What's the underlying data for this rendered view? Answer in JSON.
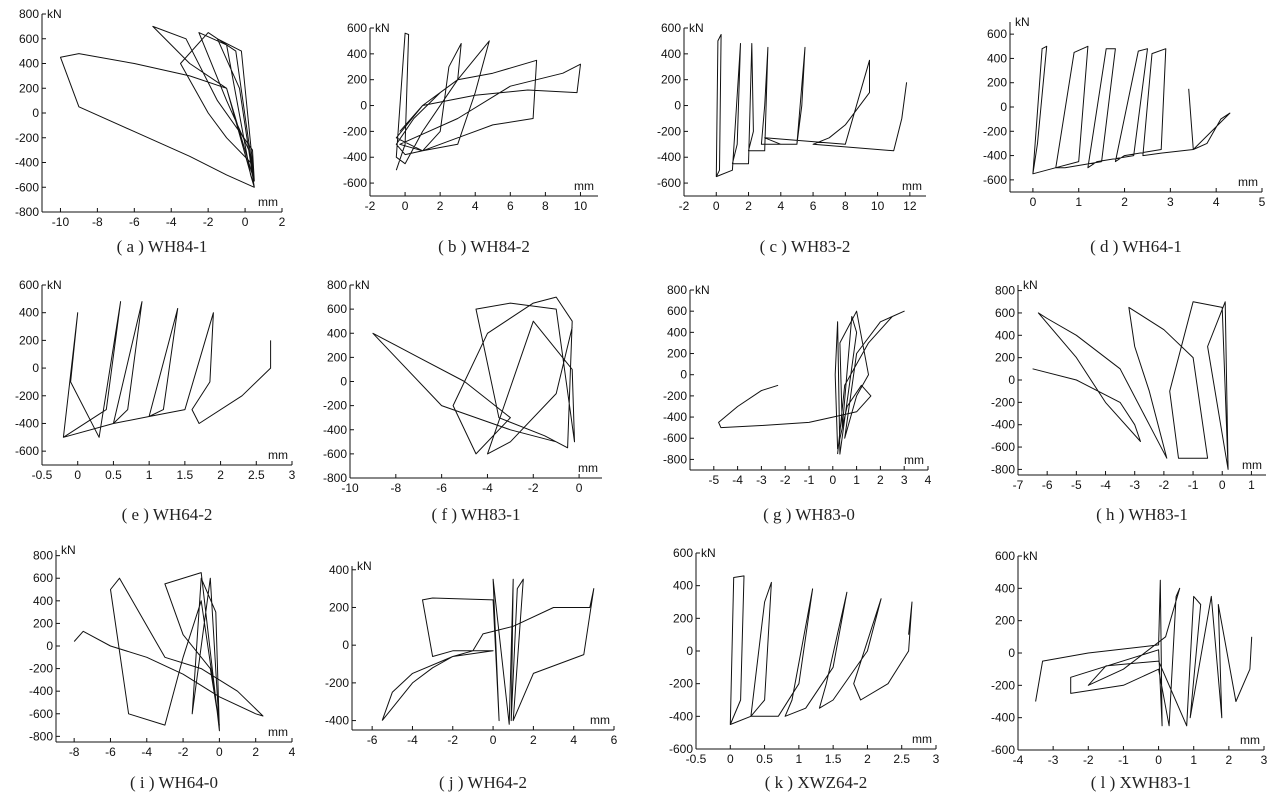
{
  "chart_data": [
    {
      "type": "line",
      "caption": "( a ) WH84-1",
      "xlabel": "mm",
      "ylabel": "kN",
      "xlim": [
        -11,
        2
      ],
      "ylim": [
        -800,
        800
      ],
      "xticks": [
        -10,
        -8,
        -6,
        -4,
        -2,
        0,
        2
      ],
      "yticks": [
        -800,
        -600,
        -400,
        -200,
        0,
        200,
        400,
        600,
        800
      ],
      "series": [
        {
          "x": [
            0.5,
            -1,
            -3,
            -6,
            -9,
            -10,
            -9,
            -6,
            -3,
            -1,
            0.5,
            0.3,
            -1,
            -2,
            -3.5,
            -2,
            -0.5,
            0.5,
            0.4,
            -1.5,
            -3.2,
            -5,
            -3,
            -1,
            0.5,
            0.2,
            -1,
            -2.5,
            -1,
            0.3,
            0.5,
            -0.3,
            -1.5,
            -0.2,
            0.5
          ],
          "y": [
            -600,
            -500,
            -350,
            -150,
            50,
            450,
            480,
            400,
            300,
            200,
            -600,
            -400,
            -200,
            0,
            400,
            650,
            500,
            -550,
            -300,
            100,
            600,
            700,
            400,
            200,
            -550,
            -300,
            100,
            650,
            550,
            -500,
            -600,
            200,
            600,
            500,
            -550
          ]
        }
      ]
    },
    {
      "type": "line",
      "caption": "( b ) WH84-2",
      "xlabel": "mm",
      "ylabel": "kN",
      "xlim": [
        -2,
        11
      ],
      "ylim": [
        -700,
        600
      ],
      "xticks": [
        -2,
        0,
        2,
        4,
        6,
        8,
        10
      ],
      "yticks": [
        -600,
        -400,
        -200,
        0,
        200,
        400,
        600
      ],
      "series": [
        {
          "x": [
            -0.5,
            0,
            0.2,
            0,
            -0.5,
            0,
            1,
            3,
            3.2,
            2.5,
            2,
            1,
            0,
            -0.5,
            0.5,
            2,
            3,
            4.5,
            4.8,
            4,
            3,
            1,
            -0.5,
            1,
            3,
            5,
            7.5,
            7.3,
            5,
            3,
            1,
            -0.3,
            3,
            6,
            9,
            10,
            9.8,
            7,
            4,
            1,
            -0.3
          ],
          "y": [
            -500,
            -300,
            550,
            560,
            -400,
            -450,
            -200,
            200,
            480,
            300,
            -200,
            -350,
            -380,
            -300,
            -100,
            100,
            200,
            450,
            500,
            100,
            -300,
            -350,
            -250,
            0,
            200,
            250,
            350,
            -100,
            -150,
            -250,
            -350,
            -300,
            -100,
            150,
            250,
            320,
            100,
            120,
            80,
            0,
            -200
          ]
        }
      ]
    },
    {
      "type": "line",
      "caption": "( c ) WH83-2",
      "xlabel": "mm",
      "ylabel": "kN",
      "xlim": [
        -2,
        13
      ],
      "ylim": [
        -700,
        600
      ],
      "xticks": [
        -2,
        0,
        2,
        4,
        6,
        8,
        10,
        12
      ],
      "yticks": [
        -600,
        -400,
        -200,
        0,
        200,
        400,
        600
      ],
      "series": [
        {
          "x": [
            0,
            0.1,
            0.3,
            0.2,
            0,
            1,
            1.5,
            1.3,
            1,
            2,
            2.2,
            2.3,
            2,
            3,
            3.2,
            3,
            2.8,
            5,
            5.5,
            5.3,
            5,
            4,
            3,
            8,
            9.5,
            9.5,
            8,
            7,
            6,
            11,
            11.5,
            11.8
          ],
          "y": [
            -550,
            500,
            550,
            -500,
            -550,
            -500,
            480,
            -300,
            -450,
            -450,
            480,
            -200,
            -350,
            -350,
            450,
            0,
            -300,
            -300,
            450,
            0,
            -300,
            -300,
            -250,
            -300,
            350,
            100,
            -150,
            -250,
            -300,
            -350,
            -100,
            180
          ]
        }
      ]
    },
    {
      "type": "line",
      "caption": "( d ) WH64-1",
      "xlabel": "mm",
      "ylabel": "kN",
      "xlim": [
        -0.5,
        5
      ],
      "ylim": [
        -700,
        700
      ],
      "xticks": [
        0,
        1,
        2,
        3,
        4,
        5
      ],
      "yticks": [
        -600,
        -400,
        -200,
        0,
        200,
        400,
        600
      ],
      "series": [
        {
          "x": [
            0,
            0.1,
            0.3,
            0.2,
            0,
            0.5,
            1,
            1.2,
            0.9,
            0.5,
            0.7,
            1.5,
            1.8,
            1.6,
            1.2,
            1.4,
            2.2,
            2.5,
            2.3,
            1.8,
            2,
            2.8,
            2.9,
            2.6,
            2.4,
            2.8,
            3.5,
            4.3,
            4.1,
            3.8,
            3.5,
            3.4
          ],
          "y": [
            -550,
            -300,
            500,
            480,
            -550,
            -500,
            -450,
            500,
            450,
            -500,
            -500,
            -450,
            480,
            480,
            -500,
            -450,
            -400,
            480,
            460,
            -450,
            -400,
            -350,
            480,
            440,
            -400,
            -380,
            -350,
            -50,
            -100,
            -300,
            -350,
            150
          ]
        }
      ]
    },
    {
      "type": "line",
      "caption": "( e ) WH64-2",
      "xlabel": "mm",
      "ylabel": "kN",
      "xlim": [
        -0.5,
        3
      ],
      "ylim": [
        -700,
        600
      ],
      "xticks": [
        -0.5,
        0,
        0.5,
        1,
        1.5,
        2,
        2.5,
        3
      ],
      "yticks": [
        -600,
        -400,
        -200,
        0,
        200,
        400,
        600
      ],
      "series": [
        {
          "x": [
            -0.2,
            0,
            -0.1,
            0.3,
            0.6,
            0.4,
            -0.2,
            0.5,
            0.9,
            0.7,
            0.5,
            1.0,
            1.4,
            1.2,
            1.0,
            1.5,
            1.9,
            1.85,
            1.6,
            1.7,
            2.3,
            2.7,
            2.7
          ],
          "y": [
            -500,
            400,
            -100,
            -500,
            480,
            -300,
            -500,
            -400,
            480,
            -300,
            -400,
            -350,
            430,
            -300,
            -350,
            -300,
            400,
            -100,
            -300,
            -400,
            -200,
            0,
            200
          ]
        }
      ]
    },
    {
      "type": "line",
      "caption": "( f ) WH83-1",
      "xlabel": "mm",
      "ylabel": "kN",
      "xlim": [
        -10,
        1
      ],
      "ylim": [
        -800,
        800
      ],
      "xticks": [
        -10,
        -8,
        -6,
        -4,
        -2,
        0
      ],
      "yticks": [
        -800,
        -600,
        -400,
        -200,
        0,
        200,
        400,
        600,
        800
      ],
      "series": [
        {
          "x": [
            -0.5,
            -1,
            -3,
            -6,
            -9,
            -8,
            -7,
            -5,
            -4,
            -3,
            -4.5,
            -5.5,
            -4,
            -2,
            -1,
            -0.3,
            -0.5,
            -1.5,
            -3.5,
            -4.5,
            -3,
            -1,
            -0.2,
            -0.3,
            -2,
            -4,
            -3,
            -1,
            -0.3
          ],
          "y": [
            -550,
            -500,
            -400,
            -200,
            400,
            300,
            200,
            0,
            -150,
            -300,
            -600,
            -200,
            400,
            650,
            700,
            500,
            -550,
            -450,
            -300,
            600,
            650,
            600,
            -500,
            100,
            500,
            -600,
            -500,
            -100,
            450
          ]
        }
      ]
    },
    {
      "type": "line",
      "caption": "( g ) WH83-0",
      "xlabel": "mm",
      "ylabel": "kN",
      "xlim": [
        -6,
        4
      ],
      "ylim": [
        -900,
        800
      ],
      "xticks": [
        -5,
        -4,
        -3,
        -2,
        -1,
        0,
        1,
        2,
        3,
        4
      ],
      "yticks": [
        -800,
        -600,
        -400,
        -200,
        0,
        200,
        400,
        600,
        800
      ],
      "series": [
        {
          "x": [
            -2.3,
            -3,
            -4,
            -4.8,
            -4.7,
            -3,
            -1,
            0,
            1,
            1.6,
            1.2,
            0.6,
            0.2,
            0.1,
            0.2,
            0.3,
            1,
            0.8,
            0.4,
            0.3,
            1,
            1.5,
            1,
            0.5,
            1,
            2,
            3,
            2.5,
            1.5,
            0.5,
            0.2
          ],
          "y": [
            -100,
            -150,
            -300,
            -450,
            -500,
            -480,
            -450,
            -400,
            -350,
            -200,
            -100,
            -300,
            -700,
            0,
            500,
            -750,
            400,
            550,
            -500,
            300,
            600,
            0,
            -200,
            -600,
            200,
            500,
            600,
            550,
            300,
            -100,
            -750
          ]
        }
      ]
    },
    {
      "type": "line",
      "caption": "( h ) WH83-1",
      "xlabel": "mm",
      "ylabel": "kN",
      "xlim": [
        -7,
        1.5
      ],
      "ylim": [
        -850,
        850
      ],
      "xticks": [
        -7,
        -6,
        -5,
        -4,
        -3,
        -2,
        -1,
        0,
        1
      ],
      "yticks": [
        -800,
        -600,
        -400,
        -200,
        0,
        200,
        400,
        600,
        800
      ],
      "series": [
        {
          "x": [
            -6.5,
            -5,
            -3.5,
            -3,
            -2.8,
            -4,
            -5,
            -6.3,
            -6,
            -5,
            -3.5,
            -2.5,
            -1.9,
            -2.5,
            -3,
            -3.2,
            -2,
            -1,
            -0.5,
            -1.5,
            -1.8,
            -1,
            0,
            0.2,
            -0.5,
            0.1,
            0.2
          ],
          "y": [
            100,
            0,
            -200,
            -400,
            -550,
            -200,
            200,
            600,
            550,
            400,
            100,
            -400,
            -700,
            -100,
            300,
            650,
            450,
            200,
            -700,
            -700,
            -100,
            700,
            650,
            -800,
            300,
            700,
            -800
          ]
        }
      ]
    },
    {
      "type": "line",
      "caption": "( i ) WH64-0",
      "xlabel": "mm",
      "ylabel": "kN",
      "xlim": [
        -9,
        4
      ],
      "ylim": [
        -850,
        850
      ],
      "xticks": [
        -8,
        -6,
        -4,
        -2,
        0,
        2,
        4
      ],
      "yticks": [
        -800,
        -600,
        -400,
        -200,
        0,
        200,
        400,
        600,
        800
      ],
      "series": [
        {
          "x": [
            -8,
            -7.5,
            -6,
            -4,
            -2,
            0,
            2,
            2.4,
            1,
            0,
            -1,
            -3,
            -5.5,
            -6,
            -5,
            -3,
            -2,
            -1,
            0,
            -0.5,
            -2,
            -3,
            -1,
            0,
            -0.2,
            -1,
            -1.5,
            -0.5,
            0
          ],
          "y": [
            40,
            130,
            0,
            -100,
            -250,
            -450,
            -600,
            -620,
            -400,
            -300,
            -200,
            -100,
            600,
            500,
            -600,
            -700,
            -100,
            400,
            -700,
            -200,
            100,
            550,
            650,
            -750,
            300,
            600,
            -600,
            600,
            -750
          ]
        }
      ]
    },
    {
      "type": "line",
      "caption": "( j ) WH64-2",
      "xlabel": "mm",
      "ylabel": "kN",
      "xlim": [
        -7,
        6
      ],
      "ylim": [
        -450,
        420
      ],
      "xticks": [
        -6,
        -4,
        -2,
        0,
        2,
        4,
        6
      ],
      "yticks": [
        -400,
        -200,
        0,
        200,
        400
      ],
      "series": [
        {
          "x": [
            -5.5,
            -5,
            -4,
            -2,
            0,
            -2,
            -3,
            -3.5,
            -3,
            0,
            0.3,
            0,
            0.8,
            1,
            0.9,
            1.2,
            1.5,
            1,
            2,
            4.5,
            5,
            4.8,
            3,
            1,
            -0.5,
            -1,
            -2,
            -3,
            -4,
            -5.5
          ],
          "y": [
            -400,
            -250,
            -150,
            -60,
            -30,
            -30,
            -60,
            240,
            250,
            240,
            -400,
            350,
            -420,
            350,
            -400,
            300,
            350,
            -400,
            -150,
            -50,
            300,
            200,
            200,
            100,
            60,
            -30,
            -60,
            -120,
            -200,
            -400
          ]
        }
      ]
    },
    {
      "type": "line",
      "caption": "( k ) XWZ64-2",
      "xlabel": "mm",
      "ylabel": "kN",
      "xlim": [
        -0.5,
        3
      ],
      "ylim": [
        -600,
        600
      ],
      "xticks": [
        -0.5,
        0,
        0.5,
        1,
        1.5,
        2,
        2.5,
        3
      ],
      "yticks": [
        -600,
        -400,
        -200,
        0,
        200,
        400,
        600
      ],
      "series": [
        {
          "x": [
            0,
            0.05,
            0.2,
            0.15,
            0,
            0.3,
            0.5,
            0.6,
            0.5,
            0.3,
            0.7,
            1.0,
            1.2,
            0.9,
            0.8,
            1.1,
            1.5,
            1.7,
            1.4,
            1.3,
            1.5,
            2.0,
            2.2,
            1.8,
            1.9,
            2.3,
            2.6,
            2.65,
            2.6
          ],
          "y": [
            -450,
            450,
            460,
            -300,
            -450,
            -400,
            -300,
            420,
            300,
            -400,
            -400,
            -200,
            380,
            -300,
            -400,
            -350,
            -100,
            360,
            -200,
            -350,
            -300,
            0,
            320,
            -200,
            -300,
            -200,
            0,
            300,
            100
          ]
        }
      ]
    },
    {
      "type": "line",
      "caption": "( l ) XWH83-1",
      "xlabel": "mm",
      "ylabel": "kN",
      "xlim": [
        -4,
        3
      ],
      "ylim": [
        -600,
        600
      ],
      "xticks": [
        -4,
        -3,
        -2,
        -1,
        0,
        1,
        2,
        3
      ],
      "yticks": [
        -600,
        -400,
        -200,
        0,
        200,
        400,
        600
      ],
      "series": [
        {
          "x": [
            -3.5,
            -3.3,
            -2,
            0,
            0.05,
            0.1,
            0,
            -2.5,
            -2.5,
            -1,
            0,
            0.3,
            0.5,
            0.6,
            0.2,
            -1,
            -2,
            -1.5,
            0,
            0.8,
            1,
            1.2,
            0.9,
            1.5,
            1.8,
            1.7,
            2.2,
            2.6,
            2.65
          ],
          "y": [
            -300,
            -50,
            0,
            50,
            450,
            -450,
            20,
            -150,
            -250,
            -200,
            -100,
            -450,
            350,
            400,
            100,
            -100,
            -200,
            -80,
            -50,
            -450,
            350,
            300,
            -400,
            350,
            -400,
            300,
            -300,
            -100,
            100
          ]
        }
      ]
    }
  ]
}
